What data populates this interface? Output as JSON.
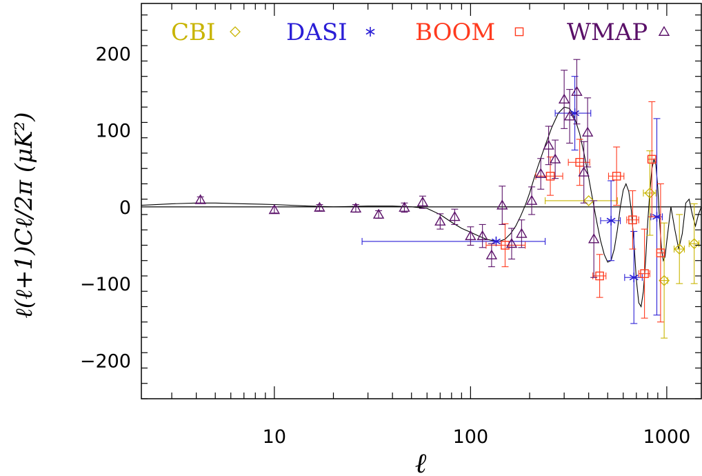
{
  "chart_data": {
    "type": "scatter",
    "x_scale": "log",
    "xlim": [
      2.1,
      1500
    ],
    "ylim": [
      -250,
      265
    ],
    "x_ticks": [
      10,
      100,
      1000
    ],
    "x_tick_labels": [
      "10",
      "100",
      "1000"
    ],
    "y_ticks": [
      -200,
      -100,
      0,
      100,
      200
    ],
    "y_tick_labels": [
      "−200",
      "−100",
      "0",
      "100",
      "200"
    ],
    "xlabel": "ℓ",
    "ylabel": "ℓ(ℓ+1)Cℓ/2π  (μK²)",
    "grid": false,
    "legend_position": "top",
    "series": [
      {
        "name": "CBI",
        "marker": "diamond",
        "color": "#c8b400",
        "points": [
          {
            "x": 400,
            "y": 8,
            "dy": 0,
            "xlo": 240,
            "xhi": 560
          },
          {
            "x": 820,
            "y": 18,
            "dy": 55,
            "xlo": 760,
            "xhi": 880
          },
          {
            "x": 970,
            "y": -96,
            "dy": 75,
            "xlo": 930,
            "xhi": 1010
          },
          {
            "x": 1160,
            "y": -55,
            "dy": 45,
            "xlo": 1090,
            "xhi": 1230
          },
          {
            "x": 1380,
            "y": -48,
            "dy": 52,
            "xlo": 1300,
            "xhi": 1460
          }
        ]
      },
      {
        "name": "DASI",
        "marker": "asterisk",
        "color": "#2a1ed6",
        "points": [
          {
            "x": 135,
            "y": -45,
            "dy": 0,
            "xlo": 28,
            "xhi": 240
          },
          {
            "x": 340,
            "y": 122,
            "dy": 48,
            "xlo": 270,
            "xhi": 410
          },
          {
            "x": 520,
            "y": -18,
            "dy": 52,
            "xlo": 460,
            "xhi": 580
          },
          {
            "x": 680,
            "y": -92,
            "dy": 60,
            "xlo": 610,
            "xhi": 750
          },
          {
            "x": 890,
            "y": -13,
            "dy": 128,
            "xlo": 830,
            "xhi": 950
          }
        ]
      },
      {
        "name": "BOOM",
        "marker": "square",
        "color": "#ff3a1e",
        "points": [
          {
            "x": 150,
            "y": -50,
            "dy": 28,
            "xlo": 120,
            "xhi": 190
          },
          {
            "x": 255,
            "y": 40,
            "dy": 25,
            "xlo": 215,
            "xhi": 295
          },
          {
            "x": 360,
            "y": 58,
            "dy": 30,
            "xlo": 315,
            "xhi": 405
          },
          {
            "x": 555,
            "y": 40,
            "dy": 38,
            "xlo": 505,
            "xhi": 605
          },
          {
            "x": 455,
            "y": -90,
            "dy": 28,
            "xlo": 420,
            "xhi": 490
          },
          {
            "x": 670,
            "y": -17,
            "dy": 38,
            "xlo": 625,
            "xhi": 720
          },
          {
            "x": 770,
            "y": -87,
            "dy": 58,
            "xlo": 720,
            "xhi": 820
          },
          {
            "x": 840,
            "y": 62,
            "dy": 75,
            "xlo": 800,
            "xhi": 880
          },
          {
            "x": 930,
            "y": -60,
            "dy": 90,
            "xlo": 890,
            "xhi": 970
          }
        ]
      },
      {
        "name": "WMAP",
        "marker": "triangle",
        "color": "#5a1068",
        "points": [
          {
            "x": 4.2,
            "y": 9,
            "dy": 4
          },
          {
            "x": 10,
            "y": -4,
            "dy": 4
          },
          {
            "x": 17,
            "y": -1,
            "dy": 4
          },
          {
            "x": 26,
            "y": -2,
            "dy": 5
          },
          {
            "x": 34,
            "y": -10,
            "dy": 5
          },
          {
            "x": 46,
            "y": -1,
            "dy": 6
          },
          {
            "x": 57,
            "y": 6,
            "dy": 8
          },
          {
            "x": 70,
            "y": -19,
            "dy": 10
          },
          {
            "x": 83,
            "y": -13,
            "dy": 10
          },
          {
            "x": 100,
            "y": -38,
            "dy": 12
          },
          {
            "x": 115,
            "y": -38,
            "dy": 15
          },
          {
            "x": 128,
            "y": -63,
            "dy": 15
          },
          {
            "x": 145,
            "y": 2,
            "dy": 25
          },
          {
            "x": 162,
            "y": -48,
            "dy": 20
          },
          {
            "x": 182,
            "y": -35,
            "dy": 18
          },
          {
            "x": 205,
            "y": 8,
            "dy": 18
          },
          {
            "x": 228,
            "y": 43,
            "dy": 20
          },
          {
            "x": 250,
            "y": 80,
            "dy": 25
          },
          {
            "x": 270,
            "y": 62,
            "dy": 25
          },
          {
            "x": 300,
            "y": 140,
            "dy": 38
          },
          {
            "x": 320,
            "y": 118,
            "dy": 35
          },
          {
            "x": 348,
            "y": 150,
            "dy": 42
          },
          {
            "x": 378,
            "y": 45,
            "dy": 40
          },
          {
            "x": 395,
            "y": 97,
            "dy": 45
          },
          {
            "x": 425,
            "y": -42,
            "dy": 50
          }
        ]
      }
    ],
    "model_curve": {
      "x": [
        2.1,
        3,
        4,
        5,
        7,
        10,
        15,
        20,
        30,
        40,
        50,
        60,
        70,
        80,
        90,
        100,
        110,
        120,
        130,
        140,
        150,
        160,
        170,
        180,
        190,
        200,
        210,
        220,
        240,
        260,
        280,
        300,
        320,
        340,
        360,
        380,
        400,
        420,
        440,
        460,
        480,
        500,
        520,
        540,
        560,
        580,
        600,
        620,
        640,
        660,
        680,
        700,
        720,
        740,
        760,
        780,
        800,
        820,
        840,
        860,
        880,
        900,
        920,
        940,
        960,
        980,
        1000,
        1050,
        1100,
        1150,
        1200,
        1250,
        1300,
        1350,
        1400,
        1450,
        1500
      ],
      "y": [
        2,
        4,
        5,
        5,
        4,
        3,
        1,
        0,
        1,
        1,
        0,
        -2,
        -10,
        -20,
        -28,
        -33,
        -38,
        -42,
        -44,
        -45,
        -42,
        -35,
        -25,
        -12,
        2,
        18,
        36,
        52,
        80,
        104,
        122,
        130,
        128,
        115,
        95,
        68,
        38,
        8,
        -20,
        -44,
        -62,
        -72,
        -70,
        -55,
        -30,
        0,
        22,
        30,
        20,
        -5,
        -45,
        -95,
        -125,
        -130,
        -110,
        -70,
        -20,
        20,
        50,
        62,
        55,
        25,
        -20,
        -55,
        -70,
        -65,
        -45,
        0,
        -30,
        -55,
        -35,
        5,
        10,
        -10,
        -25,
        -10,
        0
      ]
    }
  }
}
